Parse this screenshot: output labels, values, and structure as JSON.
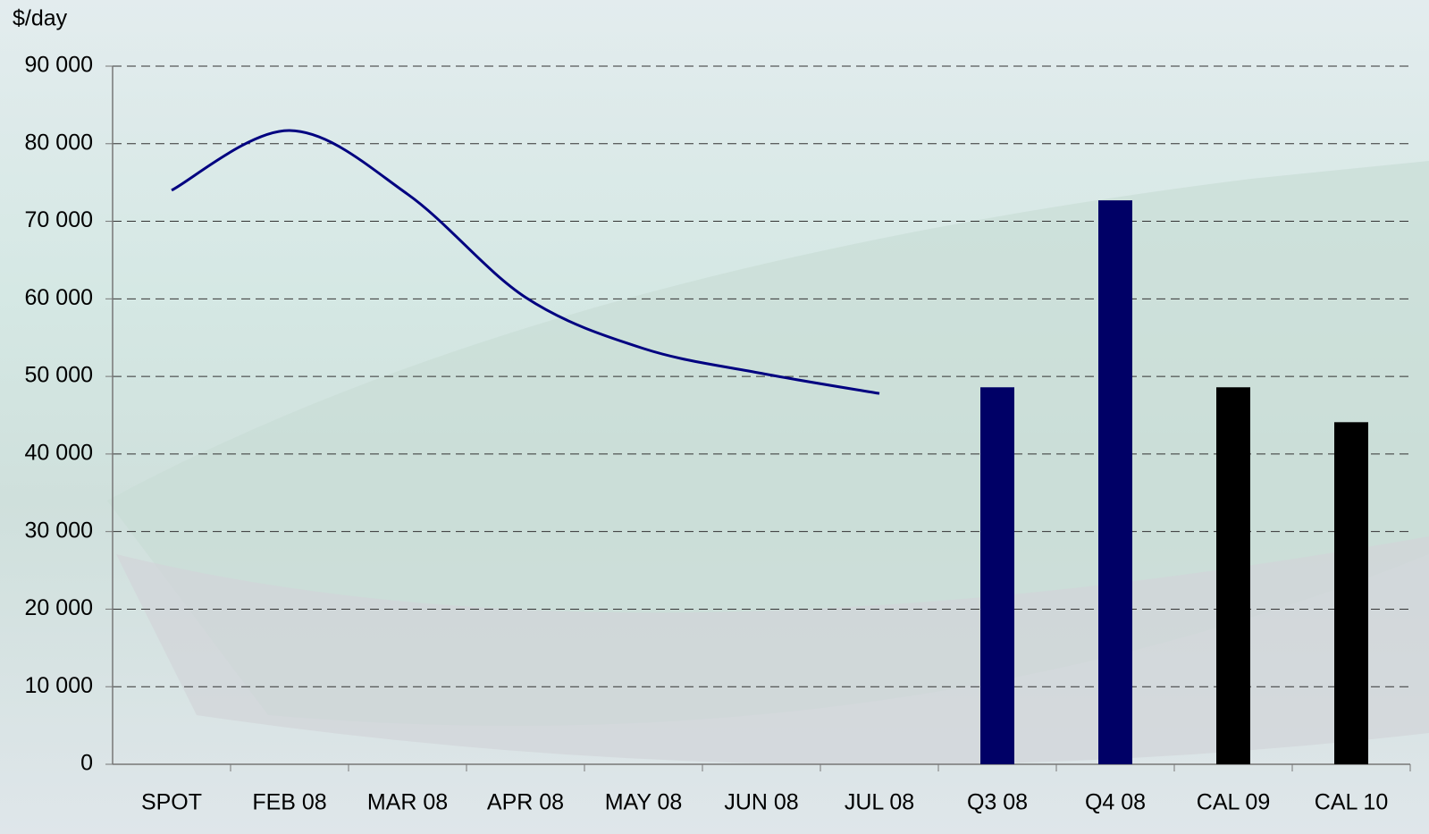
{
  "chart_data": {
    "type": "combo",
    "y_label": "$/day",
    "categories": [
      "SPOT",
      "FEB 08",
      "MAR 08",
      "APR 08",
      "MAY 08",
      "JUN 08",
      "JUL 08",
      "Q3 08",
      "Q4 08",
      "CAL 09",
      "CAL 10"
    ],
    "series": [
      {
        "type": "line",
        "color": "#000080",
        "values": [
          74000,
          81700,
          73500,
          60200,
          53600,
          50400,
          47800,
          null,
          null,
          null,
          null
        ]
      },
      {
        "type": "bar",
        "colors": [
          null,
          null,
          null,
          null,
          null,
          null,
          null,
          "#000066",
          "#000066",
          "#000000",
          "#000000"
        ],
        "values": [
          null,
          null,
          null,
          null,
          null,
          null,
          null,
          48600,
          72700,
          48600,
          44100
        ]
      }
    ],
    "ylim": [
      0,
      90000
    ],
    "yticks": [
      0,
      {
        "value": 10000,
        "label": "10 000"
      },
      {
        "value": 20000,
        "label": "20 000"
      },
      {
        "value": 30000,
        "label": "30 000"
      },
      {
        "value": 40000,
        "label": "40 000"
      },
      {
        "value": 50000,
        "label": "50 000"
      },
      {
        "value": 60000,
        "label": "60 000"
      },
      {
        "value": 70000,
        "label": "70 000"
      },
      {
        "value": 80000,
        "label": "80 000"
      },
      {
        "value": 90000,
        "label": "90 000"
      }
    ],
    "grid": true
  }
}
